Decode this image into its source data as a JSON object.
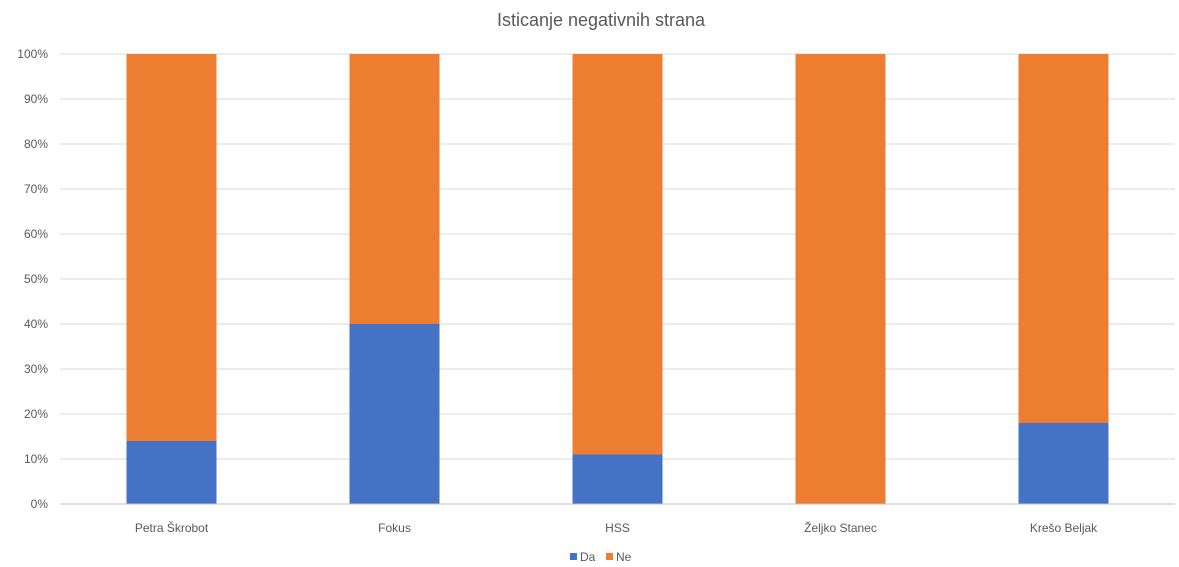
{
  "chart_data": {
    "type": "bar",
    "stacked": true,
    "percent_stacked": true,
    "title": "Isticanje negativnih strana",
    "xlabel": "",
    "ylabel": "",
    "categories": [
      "Petra Škrobot",
      "Fokus",
      "HSS",
      "Željko Stanec",
      "Krešo Beljak"
    ],
    "series": [
      {
        "name": "Da",
        "color": "#4472c4",
        "values": [
          14,
          40,
          11,
          0,
          18
        ]
      },
      {
        "name": "Ne",
        "color": "#ed7d31",
        "values": [
          86,
          60,
          89,
          100,
          82
        ]
      }
    ],
    "ylim": [
      0,
      100
    ],
    "yticks": [
      0,
      10,
      20,
      30,
      40,
      50,
      60,
      70,
      80,
      90,
      100
    ],
    "ytick_suffix": "%",
    "grid": true,
    "legend": "bottom-center"
  }
}
